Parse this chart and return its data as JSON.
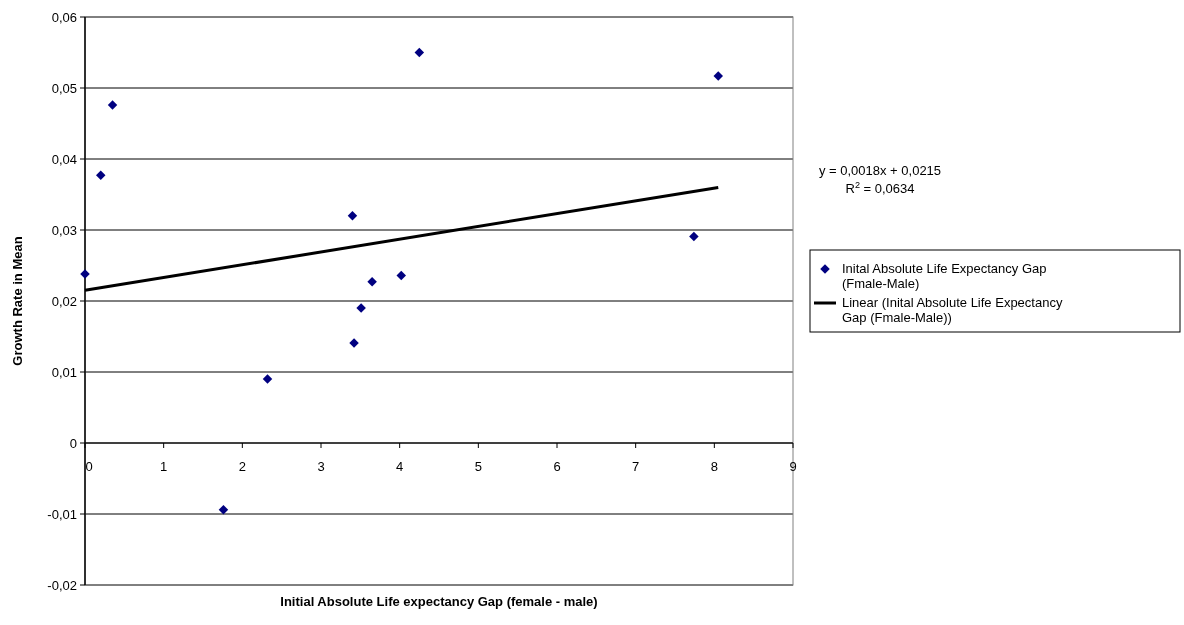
{
  "chart_data": {
    "type": "scatter",
    "xlabel": "Initial Absolute Life expectancy Gap (female - male)",
    "ylabel": "Growth Rate in Mean",
    "xlim": [
      0,
      9
    ],
    "xticks": [
      0,
      1,
      2,
      3,
      4,
      5,
      6,
      7,
      8,
      9
    ],
    "ylim": [
      -0.02,
      0.06
    ],
    "yticks": [
      {
        "value": -0.02,
        "label": "-0,02"
      },
      {
        "value": -0.01,
        "label": "-0,01"
      },
      {
        "value": 0,
        "label": "0"
      },
      {
        "value": 0.01,
        "label": "0,01"
      },
      {
        "value": 0.02,
        "label": "0,02"
      },
      {
        "value": 0.03,
        "label": "0,03"
      },
      {
        "value": 0.04,
        "label": "0,04"
      },
      {
        "value": 0.05,
        "label": "0,05"
      },
      {
        "value": 0.06,
        "label": "0,06"
      }
    ],
    "grid": "y",
    "legend": "right",
    "annotations": [
      "y = 0,0018x + 0,0215",
      "R$^{2}$ = 0,0634"
    ],
    "series": [
      {
        "name": "Inital Absolute Life Expectancy Gap (Fmale-Male)",
        "type": "scatter",
        "color": "#000080",
        "marker": "diamond",
        "x": [
          0,
          0.2,
          0.35,
          3.4,
          4.25,
          3.65,
          4.02,
          3.51,
          3.42,
          2.32,
          1.76,
          8.05,
          7.74
        ],
        "values": [
          0.0238,
          0.0377,
          0.0476,
          0.032,
          0.055,
          0.0227,
          0.0236,
          0.019,
          0.0141,
          0.009,
          -0.0094,
          0.0517,
          0.0291
        ]
      },
      {
        "name": "Linear (Inital Absolute Life Expectancy Gap (Fmale-Male))",
        "type": "line",
        "color": "#000000",
        "marker": "none",
        "line_style": "solid",
        "x": [
          0,
          8.05
        ],
        "values": [
          0.0215,
          0.036
        ]
      }
    ]
  }
}
